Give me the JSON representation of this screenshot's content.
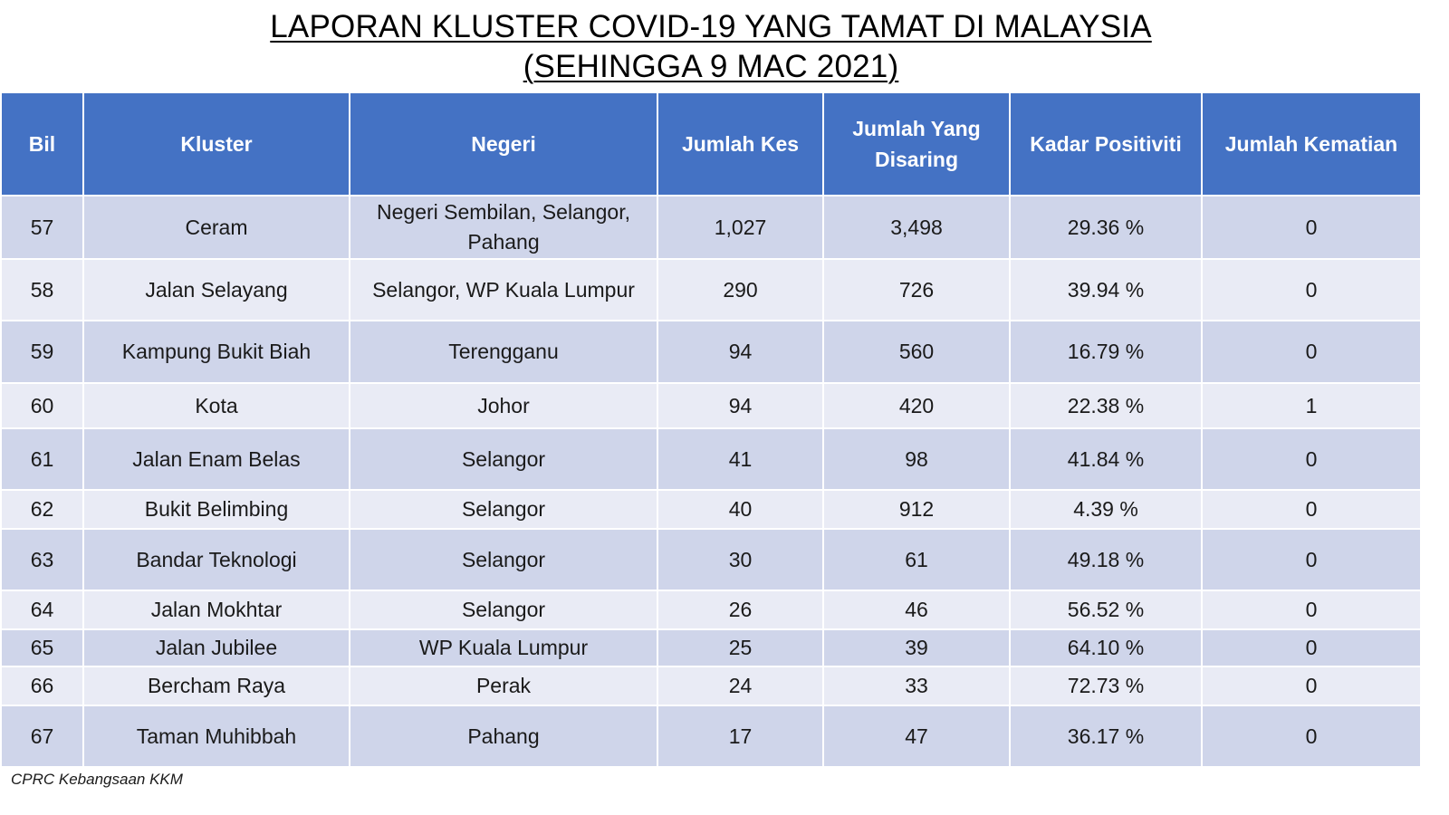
{
  "title": {
    "line1": "LAPORAN KLUSTER COVID-19 YANG TAMAT DI MALAYSIA",
    "line2": "(SEHINGGA  9 MAC 2021)"
  },
  "table": {
    "headers": {
      "bil": "Bil",
      "kluster": "Kluster",
      "negeri": "Negeri",
      "jumlah_kes": "Jumlah Kes",
      "jumlah_disaring": "Jumlah Yang Disaring",
      "kadar_positiviti": "Kadar Positiviti",
      "jumlah_kematian": "Jumlah Kematian"
    },
    "rows": [
      {
        "bil": "57",
        "kluster": "Ceram",
        "negeri": "Negeri Sembilan, Selangor, Pahang",
        "kes": "1,027",
        "disaring": "3,498",
        "positiviti": "29.36 %",
        "kematian": "0"
      },
      {
        "bil": "58",
        "kluster": "Jalan Selayang",
        "negeri": "Selangor, WP Kuala Lumpur",
        "kes": "290",
        "disaring": "726",
        "positiviti": "39.94 %",
        "kematian": "0"
      },
      {
        "bil": "59",
        "kluster": "Kampung Bukit Biah",
        "negeri": "Terengganu",
        "kes": "94",
        "disaring": "560",
        "positiviti": "16.79 %",
        "kematian": "0"
      },
      {
        "bil": "60",
        "kluster": "Kota",
        "negeri": "Johor",
        "kes": "94",
        "disaring": "420",
        "positiviti": "22.38 %",
        "kematian": "1"
      },
      {
        "bil": "61",
        "kluster": "Jalan Enam Belas",
        "negeri": "Selangor",
        "kes": "41",
        "disaring": "98",
        "positiviti": "41.84 %",
        "kematian": "0"
      },
      {
        "bil": "62",
        "kluster": "Bukit Belimbing",
        "negeri": "Selangor",
        "kes": "40",
        "disaring": "912",
        "positiviti": "4.39 %",
        "kematian": "0"
      },
      {
        "bil": "63",
        "kluster": "Bandar Teknologi",
        "negeri": "Selangor",
        "kes": "30",
        "disaring": "61",
        "positiviti": "49.18 %",
        "kematian": "0"
      },
      {
        "bil": "64",
        "kluster": "Jalan Mokhtar",
        "negeri": "Selangor",
        "kes": "26",
        "disaring": "46",
        "positiviti": "56.52 %",
        "kematian": "0"
      },
      {
        "bil": "65",
        "kluster": "Jalan Jubilee",
        "negeri": "WP Kuala Lumpur",
        "kes": "25",
        "disaring": "39",
        "positiviti": "64.10 %",
        "kematian": "0"
      },
      {
        "bil": "66",
        "kluster": "Bercham Raya",
        "negeri": "Perak",
        "kes": "24",
        "disaring": "33",
        "positiviti": "72.73 %",
        "kematian": "0"
      },
      {
        "bil": "67",
        "kluster": "Taman Muhibbah",
        "negeri": "Pahang",
        "kes": "17",
        "disaring": "47",
        "positiviti": "36.17 %",
        "kematian": "0"
      }
    ]
  },
  "footer": {
    "source": "CPRC Kebangsaan KKM"
  },
  "colors": {
    "header_bg": "#4472c4",
    "row_band_dark": "#cfd5ea",
    "row_band_light": "#e9ebf5"
  }
}
